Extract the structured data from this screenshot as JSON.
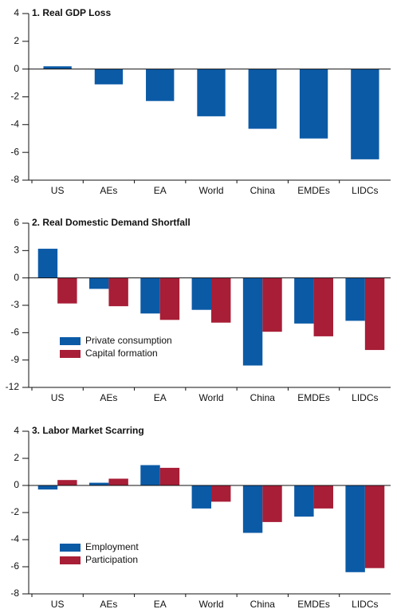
{
  "chart_data": [
    {
      "type": "bar",
      "title": "1. Real GDP Loss",
      "categories": [
        "US",
        "AEs",
        "EA",
        "World",
        "China",
        "EMDEs",
        "LIDCs"
      ],
      "values": [
        0.2,
        -1.1,
        -2.3,
        -3.4,
        -4.3,
        -5.0,
        -6.5
      ],
      "color": "#0b5aa6",
      "ylim": [
        -8,
        4
      ],
      "yticks": [
        -8,
        -6,
        -4,
        -2,
        0,
        2,
        4
      ]
    },
    {
      "type": "bar",
      "title": "2. Real Domestic Demand Shortfall",
      "categories": [
        "US",
        "AEs",
        "EA",
        "World",
        "China",
        "EMDEs",
        "LIDCs"
      ],
      "series": [
        {
          "name": "Private consumption",
          "color": "#0b5aa6",
          "values": [
            3.2,
            -1.2,
            -3.9,
            -3.5,
            -9.6,
            -5.0,
            -4.7
          ]
        },
        {
          "name": "Capital formation",
          "color": "#a81e36",
          "values": [
            -2.8,
            -3.1,
            -4.6,
            -4.9,
            -5.9,
            -6.4,
            -7.9
          ]
        }
      ],
      "ylim": [
        -12,
        6
      ],
      "yticks": [
        -12,
        -9,
        -6,
        -3,
        0,
        3,
        6
      ],
      "legend": "lower left"
    },
    {
      "type": "bar",
      "title": "3. Labor Market Scarring",
      "categories": [
        "US",
        "AEs",
        "EA",
        "World",
        "China",
        "EMDEs",
        "LIDCs"
      ],
      "series": [
        {
          "name": "Employment",
          "color": "#0b5aa6",
          "values": [
            -0.3,
            0.2,
            1.5,
            -1.7,
            -3.5,
            -2.3,
            -6.4
          ]
        },
        {
          "name": "Participation",
          "color": "#a81e36",
          "values": [
            0.4,
            0.5,
            1.3,
            -1.2,
            -2.7,
            -1.7,
            -6.1
          ]
        }
      ],
      "ylim": [
        -8,
        4
      ],
      "yticks": [
        -8,
        -6,
        -4,
        -2,
        0,
        2,
        4
      ],
      "legend": "lower left"
    }
  ]
}
